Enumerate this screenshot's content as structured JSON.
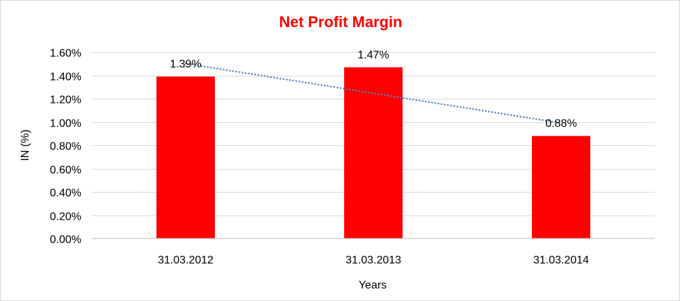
{
  "colors": {
    "title": "#ff0000",
    "bar": "#ff0000",
    "trendline": "#4a86c5",
    "gridline": "#d9d9d9",
    "axis": "#bfbfbf"
  },
  "chart_data": {
    "type": "bar",
    "title": "Net Profit Margin",
    "xlabel": "Years",
    "ylabel": "IN (%)",
    "categories": [
      "31.03.2012",
      "31.03.2013",
      "31.03.2014"
    ],
    "values": [
      1.39,
      1.47,
      0.88
    ],
    "value_labels": [
      "1.39%",
      "1.47%",
      "0.88%"
    ],
    "ylim": [
      0,
      1.6
    ],
    "y_ticks": [
      0,
      0.2,
      0.4,
      0.6,
      0.8,
      1.0,
      1.2,
      1.4,
      1.6
    ],
    "y_tick_labels": [
      "0.00%",
      "0.20%",
      "0.40%",
      "0.60%",
      "0.80%",
      "1.00%",
      "1.20%",
      "1.40%",
      "1.60%"
    ],
    "grid": true,
    "legend": "none",
    "trendline": {
      "type": "linear",
      "style": "dotted"
    }
  }
}
